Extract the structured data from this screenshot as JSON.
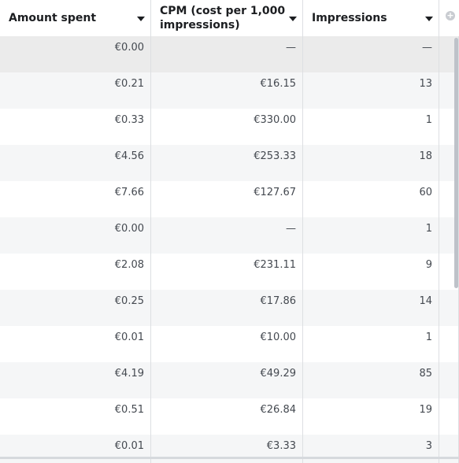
{
  "columns": {
    "amount_spent": "Amount spent",
    "cpm_line1": "CPM (cost per 1,000",
    "cpm_line2": "impressions)",
    "impressions": "Impressions"
  },
  "rows": [
    {
      "amount": "€0.00",
      "cpm": "—",
      "impressions": "—"
    },
    {
      "amount": "€0.21",
      "cpm": "€16.15",
      "impressions": "13"
    },
    {
      "amount": "€0.33",
      "cpm": "€330.00",
      "impressions": "1"
    },
    {
      "amount": "€4.56",
      "cpm": "€253.33",
      "impressions": "18"
    },
    {
      "amount": "€7.66",
      "cpm": "€127.67",
      "impressions": "60"
    },
    {
      "amount": "€0.00",
      "cpm": "—",
      "impressions": "1"
    },
    {
      "amount": "€2.08",
      "cpm": "€231.11",
      "impressions": "9"
    },
    {
      "amount": "€0.25",
      "cpm": "€17.86",
      "impressions": "14"
    },
    {
      "amount": "€0.01",
      "cpm": "€10.00",
      "impressions": "1"
    },
    {
      "amount": "€4.19",
      "cpm": "€49.29",
      "impressions": "85"
    },
    {
      "amount": "€0.51",
      "cpm": "€26.84",
      "impressions": "19"
    },
    {
      "amount": "€0.01",
      "cpm": "€3.33",
      "impressions": "3"
    }
  ],
  "icons": {
    "sort": "chevron-down-icon",
    "add_column": "add-column-icon"
  }
}
